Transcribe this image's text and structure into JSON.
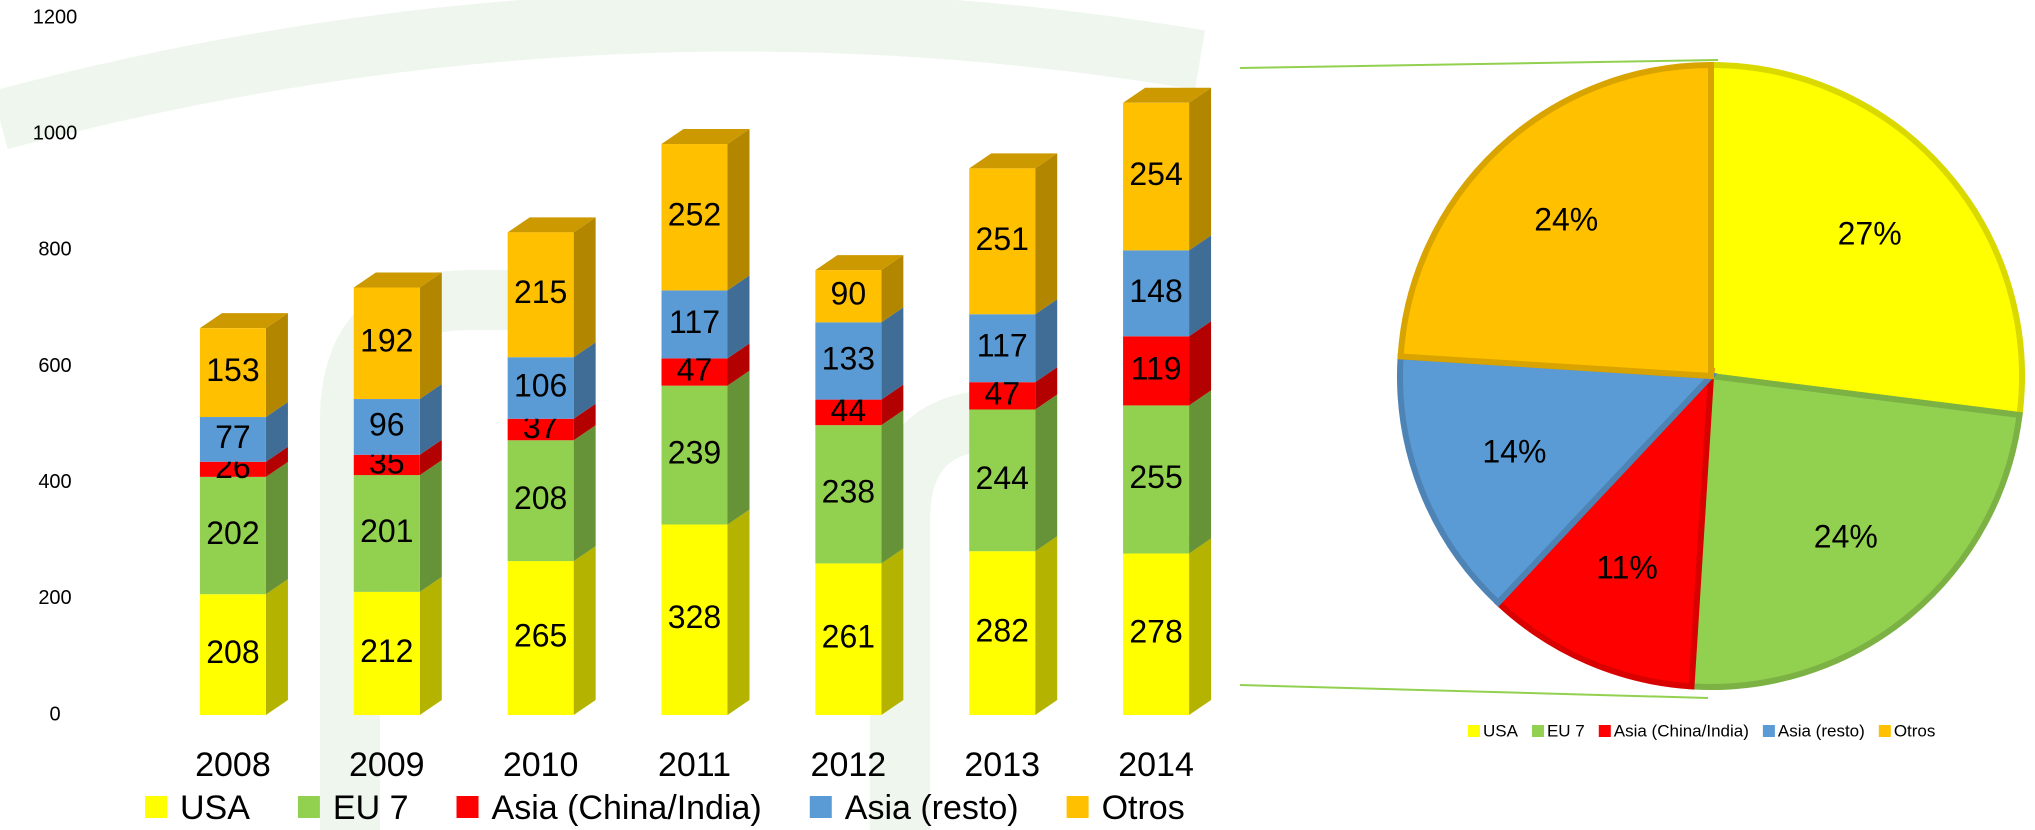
{
  "chart_data": [
    {
      "type": "stacked-bar-3d",
      "categories": [
        "2008",
        "2009",
        "2010",
        "2011",
        "2012",
        "2013",
        "2014"
      ],
      "series": [
        {
          "name": "USA",
          "color": "#ffff00",
          "values": [
            208,
            212,
            265,
            328,
            261,
            282,
            278
          ]
        },
        {
          "name": "EU 7",
          "color": "#92d050",
          "values": [
            202,
            201,
            208,
            239,
            238,
            244,
            255
          ]
        },
        {
          "name": "Asia (China/India)",
          "color": "#ff0000",
          "values": [
            26,
            35,
            37,
            47,
            44,
            47,
            119
          ]
        },
        {
          "name": "Asia (resto)",
          "color": "#5b9bd5",
          "values": [
            77,
            96,
            106,
            117,
            133,
            117,
            148
          ]
        },
        {
          "name": "Otros",
          "color": "#ffc000",
          "values": [
            153,
            192,
            215,
            252,
            90,
            251,
            254
          ]
        }
      ],
      "ylim": [
        0,
        1200
      ],
      "yticks": [
        0,
        200,
        400,
        600,
        800,
        1000,
        1200
      ],
      "grid": false,
      "legend": "bottom"
    },
    {
      "type": "pie",
      "categories": [
        "USA",
        "EU 7",
        "Asia (China/India)",
        "Asia (resto)",
        "Otros"
      ],
      "values": [
        27,
        24,
        11,
        14,
        24
      ],
      "value_labels": [
        "27%",
        "24%",
        "11%",
        "14%",
        "24%"
      ],
      "colors": [
        "#ffff00",
        "#92d050",
        "#ff0000",
        "#5b9bd5",
        "#ffc000"
      ],
      "legend": "bottom"
    }
  ]
}
